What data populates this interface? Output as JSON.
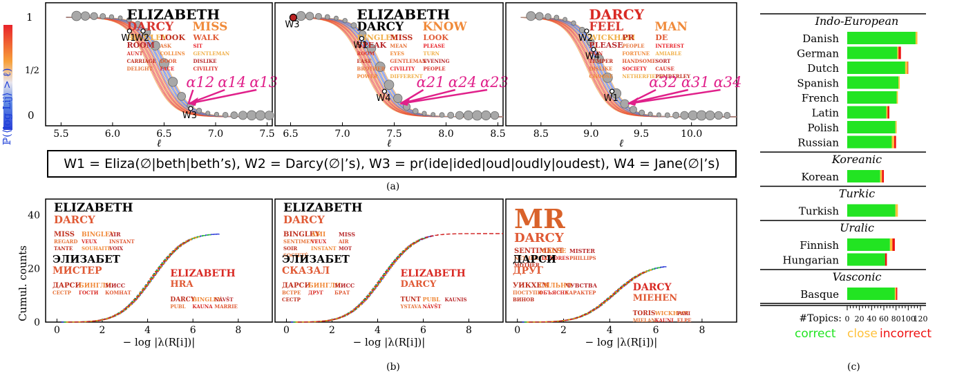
{
  "panel_a": {
    "caption": "(a)",
    "y_axis_label": "ℙ(⟨log Lij⟩ > ℓ)",
    "x_axis_label": "ℓ",
    "yticks": [
      "0",
      "1/2",
      "1"
    ],
    "subplots": [
      {
        "xticks": [
          "5.5",
          "6.0",
          "6.5",
          "7.0",
          "7.5"
        ],
        "words": [
          "ELIZABETH",
          "DARCY",
          "MISS",
          "BINGLEY",
          "LOOK",
          "WALK",
          "ROOM",
          "ASK",
          "SIT",
          "AUNT",
          "COLLINS",
          "GENTLEMAN",
          "CARRIAGE",
          "DOOR",
          "DISLIKE",
          "DELIGHT",
          "FACE",
          "CIVILITY"
        ],
        "markers": [
          "W1",
          "W2",
          "W3"
        ],
        "alphas": [
          "α12",
          "α14",
          "α13"
        ]
      },
      {
        "xticks": [
          "6.5",
          "7.0",
          "7.5",
          "8.0",
          "8.5"
        ],
        "words": [
          "ELIZABETH",
          "DARCY",
          "KNOW",
          "BINGLEY",
          "MISS",
          "LOOK",
          "SPEAK",
          "MEAN",
          "PLEASE",
          "ROOM",
          "EYES",
          "TURN",
          "EASE",
          "GENTLEMAN",
          "EVENING",
          "BROTHER",
          "CIVILITY",
          "PEOPLE",
          "POWER",
          "DIFFERENT"
        ],
        "markers": [
          "W3",
          "W1",
          "W4"
        ],
        "alphas": [
          "α21",
          "α24",
          "α23"
        ]
      },
      {
        "xticks": [
          "8.5",
          "9.0",
          "9.5",
          "10.0"
        ],
        "words": [
          "DARCY",
          "FEEL",
          "MAN",
          "WICKHAM",
          "PR",
          "DE",
          "PLEASE",
          "PEOPLE",
          "INTEREST",
          "PAIN",
          "FORTUNE",
          "AMIABLE",
          "TEMPER",
          "HANDSOME",
          "SORT",
          "DISLIKE",
          "SOCIETY",
          "CAUSE",
          "CHOOSE",
          "NETHERFIELD",
          "PEMBERLEY"
        ],
        "markers": [
          "W2",
          "W4",
          "W1"
        ],
        "alphas": [
          "α32",
          "α31",
          "α34"
        ]
      }
    ],
    "legend_text": "W1 = Eliza(∅|beth|beth’s),  W2 = Darcy(∅|’s),  W3 = pr(ide|ided|oud|oudly|oudest),  W4 = Jane(∅|’s)"
  },
  "panel_b": {
    "caption": "(b)",
    "y_axis_label": "Cumul. counts",
    "x_axis_label": "− log |λ(R[i])|",
    "yticks": [
      "0",
      "20",
      "40"
    ],
    "xticks": [
      "0",
      "2",
      "4",
      "6",
      "8"
    ],
    "subplots": [
      {
        "words_top": [
          "ELIZABETH",
          "DARCY",
          "MISS",
          "BINGLEY",
          "AIR",
          "REGARD",
          "VEUX",
          "INSTANT",
          "TANTE",
          "SOUHAITE",
          "VOIX"
        ],
        "words_left": [
          "ЭЛИЗАБЕТ",
          "МИСТЕР",
          "ДАРСИ",
          "БИНГЛИ",
          "МИСС",
          "СЕСТР",
          "ГОСТИ",
          "КОМНАТ"
        ],
        "words_right": [
          "ELIZABETH",
          "HRA",
          "DARCY",
          "BINGLEY",
          "NÁVŠT",
          "PUBL",
          "KAUNA",
          "MARRIE"
        ]
      },
      {
        "words_top": [
          "ELIZABETH",
          "DARCY",
          "BINGLEY",
          "AMI",
          "MISS",
          "SENTIMENT",
          "VEUX",
          "AIR",
          "SOIR",
          "INSTANT",
          "MOT",
          "SOCIETÉ"
        ],
        "words_left": [
          "ЭЛИЗАБЕТ",
          "СКАЗАЛ",
          "ДАРСИ",
          "БИНГЛИ",
          "МИСС",
          "ВСТРЕ",
          "ДРУГ",
          "БРАТ",
          "СЕСТР"
        ],
        "words_right": [
          "ELIZABETH",
          "DARCY",
          "TUNT",
          "PUBL",
          "KAUNIS",
          "YSTAVA",
          "NÁVŠT"
        ]
      },
      {
        "words_top": [
          "MR",
          "DARCY",
          "SENTIMENT",
          "CAUSE",
          "MISTER",
          "NETHERFIELD",
          "LONDRES",
          "PHILLIPS",
          "MOTHER"
        ],
        "words_left": [
          "ДАРСИ",
          "ДРУГ",
          "УИКХЕМ",
          "СИЛЬНО",
          "ЧУВСТВА",
          "ПОСТУПИ",
          "ОБЪЯСНЕ",
          "ХАРАКТЕР",
          "ВИНОВ"
        ],
        "words_right": [
          "DARCY",
          "MIEHEN",
          "TORIS",
          "WICKHAM",
          "PARI",
          "MIELAN",
          "KAUNI",
          "ELPE"
        ]
      }
    ]
  },
  "panel_c": {
    "caption": "(c)",
    "x_axis_title": "#Topics:",
    "xticks": [
      "0",
      "20",
      "40",
      "60",
      "80",
      "100",
      "120"
    ],
    "legend": {
      "correct": "correct",
      "close": "close",
      "incorrect": "incorrect"
    },
    "colors": {
      "correct": "#22e422",
      "close": "#ffc13b",
      "incorrect": "#ee1111"
    },
    "max": 120,
    "groups": [
      {
        "family": "Indo-European",
        "languages": [
          {
            "name": "Danish",
            "correct": 112,
            "close": 3,
            "incorrect": 0
          },
          {
            "name": "German",
            "correct": 82,
            "close": 2,
            "incorrect": 4
          },
          {
            "name": "Dutch",
            "correct": 95,
            "close": 4,
            "incorrect": 1
          },
          {
            "name": "Spanish",
            "correct": 84,
            "close": 2,
            "incorrect": 0
          },
          {
            "name": "French",
            "correct": 81,
            "close": 2,
            "incorrect": 0
          },
          {
            "name": "Latin",
            "correct": 64,
            "close": 2,
            "incorrect": 3
          },
          {
            "name": "Polish",
            "correct": 79,
            "close": 2,
            "incorrect": 0
          },
          {
            "name": "Russian",
            "correct": 73,
            "close": 4,
            "incorrect": 3
          }
        ]
      },
      {
        "family": "Koreanic",
        "languages": [
          {
            "name": "Korean",
            "correct": 54,
            "close": 3,
            "incorrect": 3
          }
        ]
      },
      {
        "family": "Turkic",
        "languages": [
          {
            "name": "Turkish",
            "correct": 79,
            "close": 4,
            "incorrect": 0
          }
        ]
      },
      {
        "family": "Uralic",
        "languages": [
          {
            "name": "Finnish",
            "correct": 70,
            "close": 4,
            "incorrect": 4
          },
          {
            "name": "Hungarian",
            "correct": 62,
            "close": 0,
            "incorrect": 3
          }
        ]
      },
      {
        "family": "Vasconic",
        "languages": [
          {
            "name": "Basque",
            "correct": 78,
            "close": 2,
            "incorrect": 2
          }
        ]
      }
    ]
  },
  "chart_data": [
    {
      "type": "line",
      "ylabel": "ℙ(⟨log Lij⟩ > ℓ)",
      "xlabel": "ℓ",
      "ylim": [
        0,
        1
      ],
      "subplots": [
        {
          "xlim": [
            5.35,
            7.55
          ],
          "midpoint": 6.45,
          "steep": 9,
          "left": 5.55
        },
        {
          "xlim": [
            6.35,
            8.55
          ],
          "midpoint": 7.3,
          "steep": 9,
          "left": 6.5
        },
        {
          "xlim": [
            8.15,
            10.45
          ],
          "midpoint": 9.05,
          "steep": 9,
          "left": 8.3
        }
      ]
    },
    {
      "type": "line",
      "ylabel": "Cumul. counts",
      "xlabel": "− log |λ(R[i])|",
      "ylim": [
        0,
        46
      ],
      "xlim": [
        -0.5,
        9.5
      ]
    },
    {
      "type": "bar",
      "xlabel": "#Topics",
      "xlim": [
        0,
        120
      ],
      "series": [
        {
          "name": "correct"
        },
        {
          "name": "close"
        },
        {
          "name": "incorrect"
        }
      ]
    }
  ]
}
